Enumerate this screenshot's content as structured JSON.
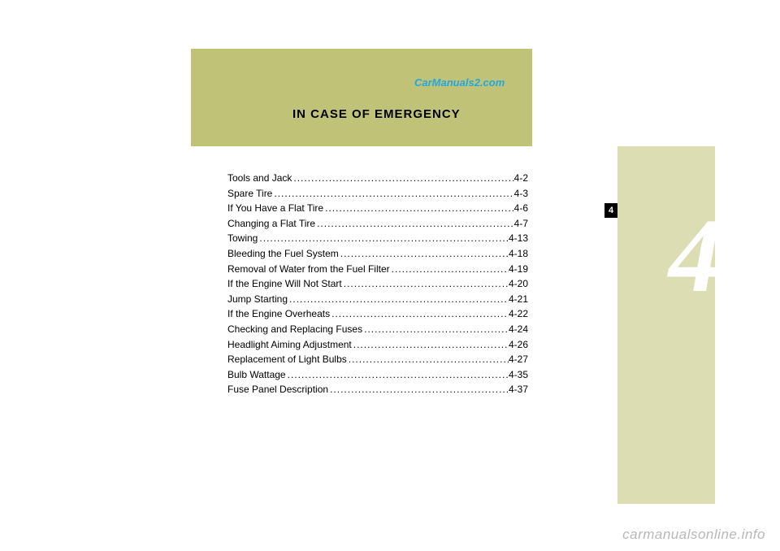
{
  "watermark_top": "CarManuals2.com",
  "section_title": "IN  CASE  OF  EMERGENCY",
  "chapter_number": "4",
  "tab_number": "4",
  "colors": {
    "header_band": "#c0c278",
    "side_band": "#ddddb4",
    "watermark_top": "#22a8dd",
    "watermark_bottom": "#b7b7b7",
    "text": "#000000",
    "big_number": "#ffffff",
    "tab_bg": "#000000",
    "tab_text": "#ffffff",
    "page_bg": "#ffffff"
  },
  "toc": [
    {
      "label": "Tools and Jack",
      "page": "4-2"
    },
    {
      "label": "Spare Tire",
      "page": "4-3"
    },
    {
      "label": "If You Have a Flat Tire",
      "page": "4-6"
    },
    {
      "label": "Changing a Flat Tire",
      "page": "4-7"
    },
    {
      "label": "Towing",
      "page": "4-13"
    },
    {
      "label": "Bleeding the Fuel System",
      "page": "4-18"
    },
    {
      "label": "Removal of Water from the Fuel Filter",
      "page": "4-19"
    },
    {
      "label": "If the Engine Will Not Start",
      "page": "4-20"
    },
    {
      "label": "Jump Starting",
      "page": "4-21"
    },
    {
      "label": "If the Engine Overheats",
      "page": "4-22"
    },
    {
      "label": "Checking and Replacing Fuses",
      "page": "4-24"
    },
    {
      "label": "Headlight Aiming Adjustment",
      "page": "4-26"
    },
    {
      "label": "Replacement of Light Bulbs",
      "page": "4-27"
    },
    {
      "label": "Bulb Wattage",
      "page": "4-35"
    },
    {
      "label": "Fuse Panel Description",
      "page": "4-37"
    }
  ],
  "watermark_bottom": "carmanualsonline.info",
  "typography": {
    "title_fontsize": 15,
    "toc_fontsize": 12,
    "big_number_fontsize": 130,
    "watermark_top_fontsize": 13,
    "watermark_bottom_fontsize": 17
  }
}
